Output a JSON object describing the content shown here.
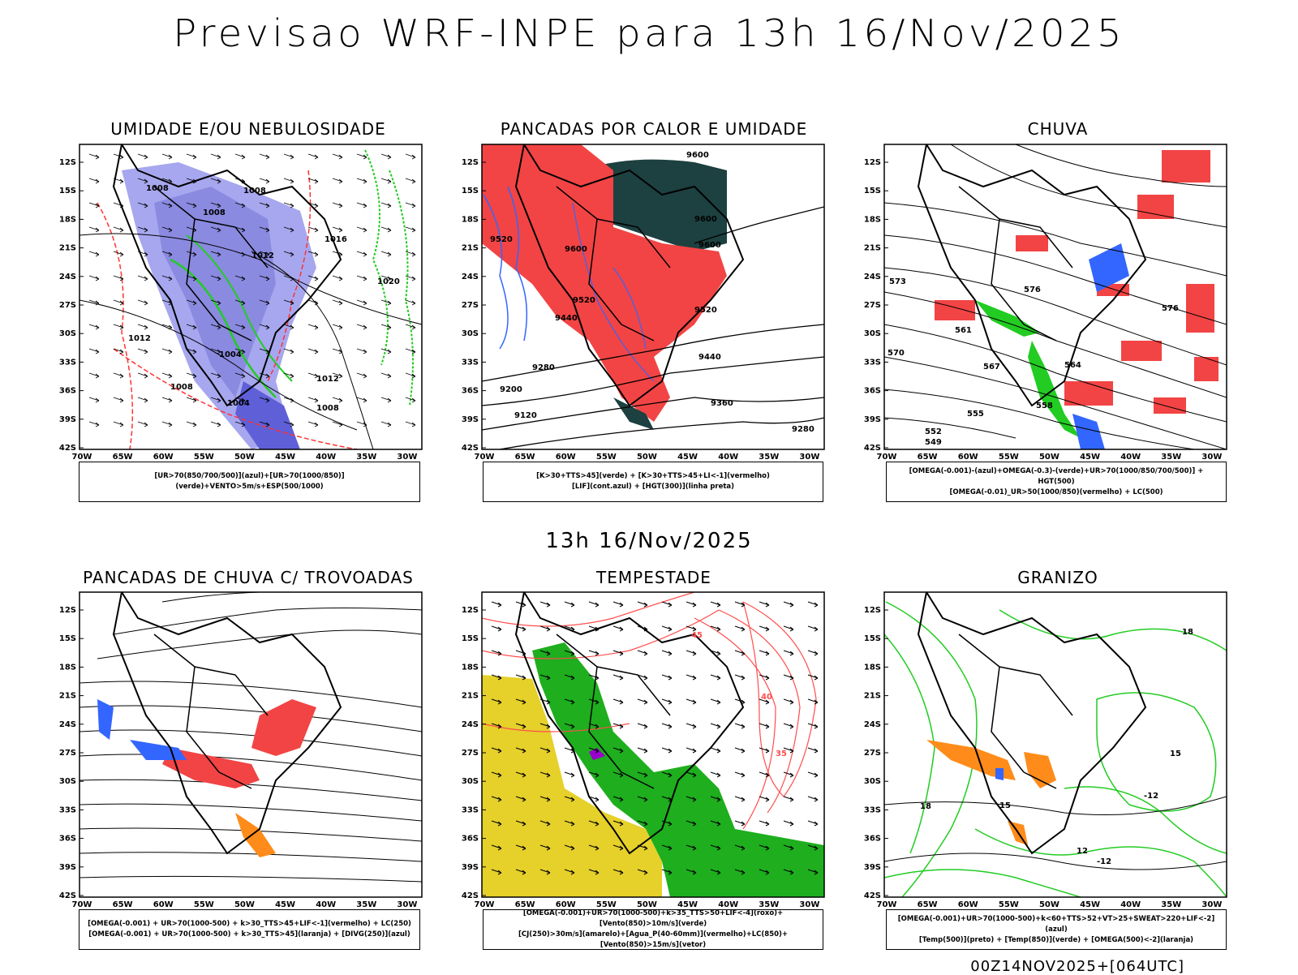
{
  "title": "Previsao WRF-INPE  para 13h 16/Nov/2025",
  "subtitle": "13h 16/Nov/2025",
  "footer": "00Z14NOV2025+[064UTC]",
  "axes": {
    "lat_labels": [
      "12S",
      "15S",
      "18S",
      "21S",
      "24S",
      "27S",
      "30S",
      "33S",
      "36S",
      "39S",
      "42S"
    ],
    "lon_labels": [
      "70W",
      "65W",
      "60W",
      "55W",
      "50W",
      "45W",
      "40W",
      "35W",
      "30W"
    ]
  },
  "colors": {
    "blue": "#3366ff",
    "green": "#22cc22",
    "red": "#ff3333",
    "orange": "#ff8c1a",
    "darkteal": "#1d4040",
    "yellow": "#e6d02a",
    "lavender": "#a7a7ef",
    "purple": "#9900cc"
  },
  "panels": [
    {
      "title": "UMIDADE E/OU NEBULOSIDADE",
      "legend": [
        "[UR>70(850/700/500)](azul)+[UR>70(1000/850)](verde)+VENTO>5m/s+ESP(500/1000)"
      ],
      "contour_labels": [
        "1008",
        "1008",
        "1008",
        "1004",
        "1012",
        "1016",
        "1020",
        "1012",
        "1008",
        "1004",
        "1008",
        "1012"
      ]
    },
    {
      "title": "PANCADAS POR CALOR E UMIDADE",
      "legend": [
        "[K>30+TTS>45](verde) + [K>30+TTS>45+LI<-1](vermelho)",
        "[LIF](cont.azul) + [HGT(300)](linha preta)"
      ],
      "contour_labels": [
        "9600",
        "9600",
        "9600",
        "9520",
        "9520",
        "9440",
        "9440",
        "9360",
        "9280",
        "9280",
        "9200",
        "9120",
        "9520",
        "9600"
      ]
    },
    {
      "title": "CHUVA",
      "legend": [
        "[OMEGA(-0.001)-(azul)+OMEGA(-0.3)-(verde)+UR>70(1000/850/700/500)] + HGT(500)",
        "[OMEGA(-0.01)_UR>50(1000/850)(vermelho) + LC(500)"
      ],
      "contour_labels": [
        "576",
        "576",
        "570",
        "567",
        "564",
        "561",
        "558",
        "555",
        "552",
        "549",
        "573"
      ]
    },
    {
      "title": "PANCADAS DE CHUVA C/ TROVOADAS",
      "legend": [
        "[OMEGA(-0.001) + UR>70(1000-500) + k>30_TTS>45+LIF<-1](vermelho) + LC(250)",
        "[OMEGA(-0.001) + UR>70(1000-500) + k>30_TTS>45](laranja) + [DIVG(250)](azul)"
      ],
      "contour_labels": []
    },
    {
      "title": "TEMPESTADE",
      "legend": [
        "[OMEGA(-0.001)+UR>70(1000-500)+k>35_TTS>50+LIF<-4](roxo)+[Vento(850)>10m/s](verde)",
        "[CJ(250)>30m/s](amarelo)+[Agua_P(40-60mm)](vermelho)+LC(850)+[Vento(850)>15m/s](vetor)"
      ],
      "contour_labels": [
        "45",
        "40",
        "35"
      ]
    },
    {
      "title": "GRANIZO",
      "legend": [
        "[OMEGA(-0.001)+UR>70(1000-500)+k<60+TTS>52+VT>25+SWEAT>220+LIF<-2](azul)",
        "[Temp(500)](preto) + [Temp(850)](verde) + [OMEGA(500)<-2](laranja)"
      ],
      "contour_labels": [
        "18",
        "15",
        "12",
        "-12",
        "-12",
        "18",
        "15"
      ]
    }
  ]
}
